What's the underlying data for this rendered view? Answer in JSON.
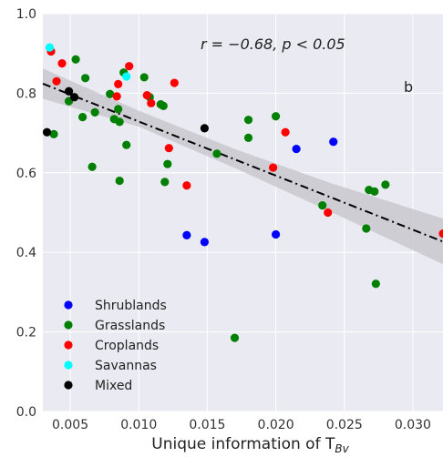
{
  "chart_data": {
    "type": "scatter",
    "title": "",
    "xlabel": "Unique information of T",
    "xlabel_sub": "Bv",
    "ylabel": "",
    "xlim": [
      0.003,
      0.0322
    ],
    "ylim": [
      0.0,
      1.0
    ],
    "xticks": [
      "0.005",
      "0.010",
      "0.015",
      "0.020",
      "0.025",
      "0.030"
    ],
    "xtick_values": [
      0.005,
      0.01,
      0.015,
      0.02,
      0.025,
      0.03
    ],
    "yticks": [
      "0.0",
      "0.2",
      "0.4",
      "0.6",
      "0.8",
      "1.0"
    ],
    "ytick_values": [
      0.0,
      0.2,
      0.4,
      0.6,
      0.8,
      1.0
    ],
    "grid": true,
    "background": "#eaeaf2",
    "annotation": "r = −0.68,  p < 0.05",
    "panel_label": "b",
    "legend_position": "bottom-left",
    "fit_line": {
      "x": [
        0.003,
        0.0322
      ],
      "y": [
        0.824,
        0.427
      ],
      "style": "dash-dot",
      "color": "#000000"
    },
    "confidence_band": {
      "x": [
        0.003,
        0.01,
        0.017,
        0.024,
        0.0322
      ],
      "upper": [
        0.862,
        0.756,
        0.66,
        0.574,
        0.485
      ],
      "lower": [
        0.786,
        0.716,
        0.612,
        0.502,
        0.37
      ],
      "color": "#c8c8ce"
    },
    "series": [
      {
        "name": "Shrublands",
        "color": "#0000ff",
        "x": [
          0.0135,
          0.0148,
          0.02,
          0.0215,
          0.0242
        ],
        "y": [
          0.443,
          0.426,
          0.445,
          0.66,
          0.678
        ]
      },
      {
        "name": "Grasslands",
        "color": "#008000",
        "x": [
          0.0038,
          0.0049,
          0.0054,
          0.0059,
          0.0061,
          0.0066,
          0.0068,
          0.0079,
          0.0082,
          0.0085,
          0.0086,
          0.0086,
          0.0089,
          0.0091,
          0.0104,
          0.0108,
          0.0116,
          0.0118,
          0.0119,
          0.0121,
          0.0157,
          0.017,
          0.018,
          0.018,
          0.02,
          0.0234,
          0.0266,
          0.0268,
          0.0272,
          0.0273,
          0.028
        ],
        "y": [
          0.697,
          0.78,
          0.885,
          0.74,
          0.838,
          0.615,
          0.752,
          0.798,
          0.735,
          0.76,
          0.58,
          0.728,
          0.852,
          0.67,
          0.84,
          0.79,
          0.772,
          0.768,
          0.577,
          0.622,
          0.648,
          0.185,
          0.688,
          0.733,
          0.742,
          0.518,
          0.46,
          0.557,
          0.553,
          0.321,
          0.57
        ]
      },
      {
        "name": "Croplands",
        "color": "#ff0000",
        "x": [
          0.0036,
          0.004,
          0.0044,
          0.0084,
          0.0085,
          0.0093,
          0.0106,
          0.0109,
          0.0122,
          0.0126,
          0.0135,
          0.0198,
          0.0207,
          0.0238,
          0.0322
        ],
        "y": [
          0.905,
          0.83,
          0.875,
          0.792,
          0.823,
          0.868,
          0.795,
          0.775,
          0.662,
          0.826,
          0.568,
          0.613,
          0.702,
          0.5,
          0.447
        ]
      },
      {
        "name": "Savannas",
        "color": "#00ffff",
        "x": [
          0.0035,
          0.0091
        ],
        "y": [
          0.915,
          0.842
        ]
      },
      {
        "name": "Mixed",
        "color": "#000000",
        "x": [
          0.0033,
          0.0049,
          0.0053,
          0.0148
        ],
        "y": [
          0.702,
          0.805,
          0.79,
          0.712
        ]
      }
    ]
  }
}
